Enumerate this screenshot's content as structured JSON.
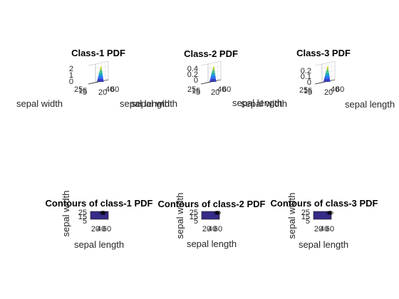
{
  "figure": {
    "surface_colormap": [
      "#3e26a8",
      "#2e6ef2",
      "#12beb9",
      "#a2c93b",
      "#f9fb15"
    ],
    "contour_fill": "#352a87",
    "contour_line": "#000000",
    "axis_color": "#262626"
  },
  "chart_data": [
    {
      "type": "surface",
      "title": "Class-1 PDF",
      "xlabel": "sepal length",
      "ylabel": "sepal width",
      "zlabel": "",
      "xticks": [
        "20",
        "40",
        "60"
      ],
      "yticks": [
        "25",
        "15",
        "5"
      ],
      "zticks": [
        "2",
        "1",
        "0"
      ],
      "xlim": [
        15,
        65
      ],
      "ylim": [
        0,
        30
      ],
      "zlim": [
        0,
        2.2
      ]
    },
    {
      "type": "surface",
      "title": "Class-2 PDF",
      "xlabel": "sepal length",
      "ylabel": "sepal width",
      "zlabel": "",
      "xticks": [
        "20",
        "40",
        "60"
      ],
      "yticks": [
        "25",
        "15",
        "5"
      ],
      "zticks": [
        "0.4",
        "0.2",
        "0"
      ],
      "xlim": [
        15,
        65
      ],
      "ylim": [
        0,
        30
      ],
      "zlim": [
        0,
        0.45
      ]
    },
    {
      "type": "surface",
      "title": "Class-3 PDF",
      "xlabel": "sepal length",
      "ylabel": "sepal width",
      "zlabel": "",
      "xticks": [
        "20",
        "40",
        "60"
      ],
      "yticks": [
        "25",
        "15",
        "5"
      ],
      "zticks": [
        "0.2",
        "0.1",
        "0"
      ],
      "xlim": [
        15,
        65
      ],
      "ylim": [
        0,
        30
      ],
      "zlim": [
        0,
        0.25
      ]
    },
    {
      "type": "contour",
      "title": "Contours of class-1 PDF",
      "xlabel": "sepal length",
      "ylabel": "sepal width",
      "xticks": [
        "20",
        "40",
        "60"
      ],
      "yticks": [
        "25",
        "15",
        "5"
      ],
      "xlim": [
        15,
        65
      ],
      "ylim": [
        0,
        30
      ],
      "peak": [
        50,
        34
      ]
    },
    {
      "type": "contour",
      "title": "Contours of class-2 PDF",
      "xlabel": "sepal length",
      "ylabel": "sepal width",
      "xticks": [
        "20",
        "40",
        "60"
      ],
      "yticks": [
        "25",
        "15",
        "5"
      ],
      "xlim": [
        15,
        65
      ],
      "ylim": [
        0,
        30
      ],
      "peak": [
        59,
        28
      ]
    },
    {
      "type": "contour",
      "title": "Contours of class-3 PDF",
      "xlabel": "sepal length",
      "ylabel": "sepal width",
      "xticks": [
        "20",
        "40",
        "60"
      ],
      "yticks": [
        "25",
        "15",
        "5"
      ],
      "xlim": [
        15,
        65
      ],
      "ylim": [
        0,
        30
      ],
      "peak": [
        66,
        30
      ]
    }
  ]
}
